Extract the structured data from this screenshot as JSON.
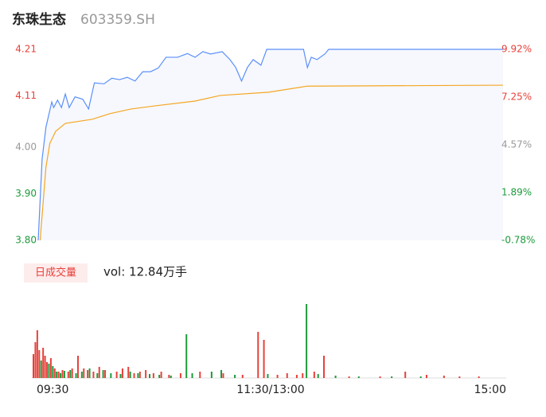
{
  "chart_data": [
    {
      "type": "line",
      "title": "东珠生态",
      "subtitle": "603359.SH",
      "xlim": [
        0,
        240
      ],
      "xticks": [
        {
          "value": 0,
          "label": "09:30"
        },
        {
          "value": 120,
          "label": "11:30/13:00"
        },
        {
          "value": 240,
          "label": "15:00"
        }
      ],
      "ylim": [
        3.8,
        4.21
      ],
      "yticks": [
        {
          "value": 3.8,
          "label": "3.80"
        },
        {
          "value": 3.9,
          "label": "3.90"
        },
        {
          "value": 4,
          "label": "4.00"
        },
        4.11,
        4.21
      ],
      "y2lim": [
        -0.78,
        9.92
      ],
      "y2ticks": [
        {
          "value": -0.78,
          "label": "-0.78%"
        },
        {
          "value": 1.89,
          "label": "1.89%"
        },
        {
          "value": 4.57,
          "label": "4.57%"
        },
        {
          "value": 7.25,
          "label": "7.25%"
        },
        {
          "value": 9.92,
          "label": "9.92%"
        }
      ],
      "series": [
        {
          "color": "#5b8ff9",
          "area_color": "#f6f8fd",
          "x": [
            0,
            2,
            4,
            7,
            8,
            10,
            12,
            14,
            16,
            19,
            23,
            26,
            29,
            34,
            38,
            42,
            46,
            50,
            54,
            58,
            62,
            66,
            72,
            77,
            81,
            85,
            89,
            95,
            99,
            102,
            105,
            108,
            111,
            115,
            118,
            137,
            139,
            141,
            144,
            148,
            150,
            240
          ],
          "values": [
            3.8,
            3.974,
            4.043,
            4.097,
            4.085,
            4.101,
            4.085,
            4.114,
            4.085,
            4.108,
            4.103,
            4.082,
            4.138,
            4.136,
            4.148,
            4.145,
            4.15,
            4.142,
            4.162,
            4.162,
            4.17,
            4.193,
            4.193,
            4.201,
            4.193,
            4.205,
            4.2,
            4.205,
            4.188,
            4.171,
            4.142,
            4.171,
            4.188,
            4.176,
            4.21,
            4.21,
            4.171,
            4.193,
            4.188,
            4.2,
            4.21,
            4.21
          ]
        },
        {
          "color": "#f5a623",
          "x": [
            1,
            4,
            6,
            9,
            14,
            28,
            37,
            48,
            61,
            81,
            94,
            119,
            139,
            240
          ],
          "values": [
            3.8,
            3.957,
            4.008,
            4.034,
            4.051,
            4.06,
            4.072,
            4.082,
            4.089,
            4.099,
            4.111,
            4.118,
            4.131,
            4.133
          ]
        }
      ]
    },
    {
      "type": "bar",
      "legend_label": "日成交量",
      "summary": "vol: 12.84万手",
      "xlim": [
        0,
        240
      ],
      "series": [
        {
          "color": "#e8413a",
          "x": [
            0,
            1,
            2,
            3,
            5,
            6,
            7,
            9,
            11,
            13,
            15,
            18,
            20,
            23,
            26,
            28,
            31,
            34,
            37,
            43,
            46,
            49,
            52,
            55,
            58,
            62,
            66,
            70,
            76,
            86,
            98,
            108,
            116,
            119,
            126,
            131,
            136,
            139,
            145,
            150,
            163,
            179,
            192,
            203,
            212,
            220,
            230
          ],
          "values": [
            30,
            45,
            60,
            35,
            38,
            28,
            20,
            25,
            12,
            8,
            10,
            8,
            12,
            28,
            12,
            10,
            8,
            14,
            10,
            8,
            12,
            14,
            6,
            8,
            10,
            6,
            8,
            4,
            6,
            8,
            6,
            4,
            58,
            48,
            4,
            6,
            4,
            6,
            8,
            28,
            2,
            2,
            8,
            4,
            3,
            2,
            2
          ]
        },
        {
          "color": "#1d9a3b",
          "x": [
            4,
            8,
            10,
            12,
            14,
            16,
            19,
            22,
            25,
            29,
            33,
            36,
            40,
            45,
            50,
            54,
            60,
            65,
            71,
            79,
            82,
            92,
            97,
            104,
            121,
            141,
            147,
            156,
            168,
            185,
            200
          ],
          "values": [
            22,
            18,
            15,
            8,
            6,
            9,
            10,
            6,
            8,
            12,
            6,
            10,
            6,
            5,
            8,
            6,
            5,
            4,
            3,
            55,
            6,
            8,
            10,
            4,
            5,
            93,
            5,
            3,
            2,
            2,
            2
          ]
        }
      ]
    }
  ]
}
